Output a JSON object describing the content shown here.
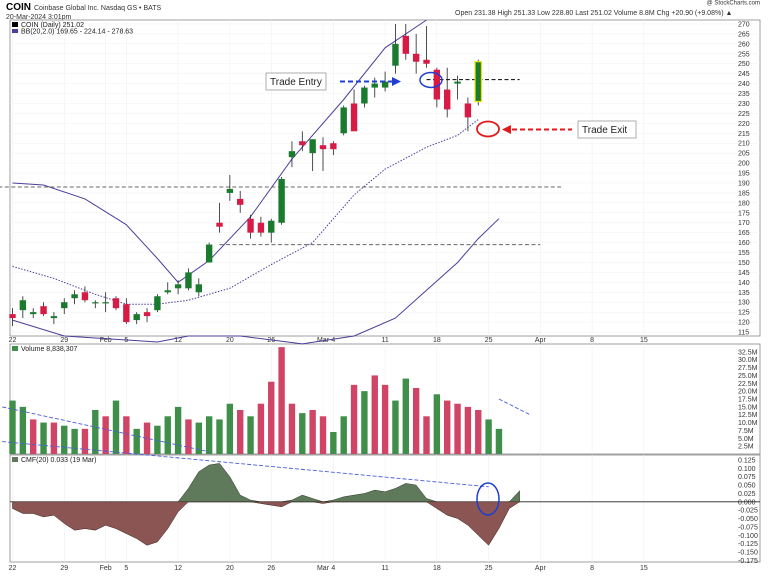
{
  "header": {
    "symbol": "COIN",
    "company": "Coinbase Global Inc.  Nasdaq GS • BATS",
    "date": "20-Mar-2024 3:01pm",
    "quote": "Open 231.38  High 251.33  Low 228.80  Last 251.02  Volume 8.8M  Chg +20.90 (+9.08%) ▲",
    "brand": "@ StockCharts.com"
  },
  "legends": {
    "price": "COIN (Daily) 251.02",
    "bb": "BB(20,2.0) 169.65 - 224.14 - 278.63",
    "volume": "Volume 8,838,307",
    "cmf": "CMF(20) 0.033 (19 Mar)"
  },
  "annotations": {
    "entry": "Trade Entry",
    "exit": "Trade Exit"
  },
  "colors": {
    "up": "#1a7a2e",
    "down": "#d81b45",
    "vol_up": "#3f8f4a",
    "vol_down": "#d04566",
    "band": "#4a3f9a",
    "cmf_pos": "#5e7a5a",
    "cmf_neg": "#8a5552",
    "ellipse_blue": "#1f3fd0",
    "ellipse_red": "#e01a1a"
  },
  "chart_data": [
    {
      "type": "candlestick",
      "ylim": [
        113,
        272
      ],
      "yticks": [
        115,
        120,
        125,
        130,
        135,
        140,
        145,
        150,
        155,
        160,
        165,
        170,
        175,
        180,
        185,
        190,
        195,
        200,
        205,
        210,
        215,
        220,
        225,
        230,
        235,
        240,
        245,
        250,
        255,
        260,
        265,
        270
      ],
      "xticks": [
        {
          "label": "22",
          "index": 0
        },
        {
          "label": "29",
          "index": 5
        },
        {
          "label": "Feb",
          "index": 9
        },
        {
          "label": "5",
          "index": 11
        },
        {
          "label": "12",
          "index": 16
        },
        {
          "label": "20",
          "index": 21
        },
        {
          "label": "26",
          "index": 25
        },
        {
          "label": "Mar",
          "index": 30
        },
        {
          "label": "4",
          "index": 31
        },
        {
          "label": "11",
          "index": 36
        },
        {
          "label": "18",
          "index": 41
        },
        {
          "label": "25",
          "index": 46
        },
        {
          "label": "Apr",
          "index": 51
        },
        {
          "label": "8",
          "index": 56
        },
        {
          "label": "15",
          "index": 61
        }
      ],
      "candles": [
        {
          "o": 124,
          "h": 127,
          "l": 118,
          "c": 122
        },
        {
          "o": 126,
          "h": 133,
          "l": 122,
          "c": 131
        },
        {
          "o": 124,
          "h": 127,
          "l": 122,
          "c": 125
        },
        {
          "o": 128,
          "h": 130,
          "l": 123,
          "c": 124
        },
        {
          "o": 122,
          "h": 125,
          "l": 119,
          "c": 123
        },
        {
          "o": 127,
          "h": 132,
          "l": 124,
          "c": 130
        },
        {
          "o": 132,
          "h": 136,
          "l": 129,
          "c": 134
        },
        {
          "o": 135,
          "h": 138,
          "l": 130,
          "c": 131
        },
        {
          "o": 130,
          "h": 131,
          "l": 127,
          "c": 130
        },
        {
          "o": 130,
          "h": 135,
          "l": 125,
          "c": 130
        },
        {
          "o": 132,
          "h": 133,
          "l": 126,
          "c": 127
        },
        {
          "o": 129,
          "h": 132,
          "l": 119,
          "c": 120
        },
        {
          "o": 121,
          "h": 125,
          "l": 119,
          "c": 124
        },
        {
          "o": 125,
          "h": 127,
          "l": 120,
          "c": 123
        },
        {
          "o": 126,
          "h": 134,
          "l": 125,
          "c": 133
        },
        {
          "o": 135,
          "h": 140,
          "l": 134,
          "c": 136
        },
        {
          "o": 137,
          "h": 141,
          "l": 134,
          "c": 139
        },
        {
          "o": 137,
          "h": 147,
          "l": 136,
          "c": 145
        },
        {
          "o": 135,
          "h": 142,
          "l": 133,
          "c": 139
        },
        {
          "o": 150,
          "h": 160,
          "l": 150,
          "c": 159
        },
        {
          "o": 170,
          "h": 180,
          "l": 165,
          "c": 168
        },
        {
          "o": 185,
          "h": 194,
          "l": 181,
          "c": 187
        },
        {
          "o": 182,
          "h": 186,
          "l": 175,
          "c": 179
        },
        {
          "o": 172,
          "h": 174,
          "l": 162,
          "c": 165
        },
        {
          "o": 170,
          "h": 173,
          "l": 163,
          "c": 165
        },
        {
          "o": 165,
          "h": 172,
          "l": 160,
          "c": 171
        },
        {
          "o": 170,
          "h": 193,
          "l": 169,
          "c": 192
        },
        {
          "o": 203,
          "h": 211,
          "l": 198,
          "c": 206
        },
        {
          "o": 211,
          "h": 216,
          "l": 206,
          "c": 209
        },
        {
          "o": 205,
          "h": 212,
          "l": 196,
          "c": 212
        },
        {
          "o": 209,
          "h": 213,
          "l": 196,
          "c": 207
        },
        {
          "o": 210,
          "h": 211,
          "l": 204,
          "c": 207
        },
        {
          "o": 215,
          "h": 229,
          "l": 214,
          "c": 228
        },
        {
          "o": 230,
          "h": 237,
          "l": 217,
          "c": 216
        },
        {
          "o": 230,
          "h": 239,
          "l": 228,
          "c": 238
        },
        {
          "o": 238,
          "h": 243,
          "l": 233,
          "c": 240
        },
        {
          "o": 238,
          "h": 246,
          "l": 236,
          "c": 241
        },
        {
          "o": 249,
          "h": 270,
          "l": 245,
          "c": 260
        },
        {
          "o": 264,
          "h": 270,
          "l": 252,
          "c": 255
        },
        {
          "o": 255,
          "h": 265,
          "l": 245,
          "c": 251
        },
        {
          "o": 252,
          "h": 269,
          "l": 248,
          "c": 250
        },
        {
          "o": 247,
          "h": 248,
          "l": 228,
          "c": 232
        },
        {
          "o": 237,
          "h": 248,
          "l": 223,
          "c": 227
        },
        {
          "o": 240,
          "h": 244,
          "l": 232,
          "c": 241
        },
        {
          "o": 230,
          "h": 233,
          "l": 216,
          "c": 223
        },
        {
          "o": 231,
          "h": 252,
          "l": 229,
          "c": 251
        }
      ],
      "bb_upper": [
        {
          "i": 0,
          "v": 190
        },
        {
          "i": 3,
          "v": 189
        },
        {
          "i": 7,
          "v": 182
        },
        {
          "i": 11,
          "v": 169
        },
        {
          "i": 14,
          "v": 152
        },
        {
          "i": 16,
          "v": 140
        },
        {
          "i": 19,
          "v": 151
        },
        {
          "i": 23,
          "v": 173
        },
        {
          "i": 27,
          "v": 202
        },
        {
          "i": 32,
          "v": 232
        },
        {
          "i": 36,
          "v": 258
        },
        {
          "i": 40,
          "v": 272
        }
      ],
      "bb_middle": [
        {
          "i": 0,
          "v": 148
        },
        {
          "i": 4,
          "v": 142
        },
        {
          "i": 8,
          "v": 134
        },
        {
          "i": 11,
          "v": 129
        },
        {
          "i": 14,
          "v": 129
        },
        {
          "i": 17,
          "v": 131
        },
        {
          "i": 21,
          "v": 137
        },
        {
          "i": 25,
          "v": 149
        },
        {
          "i": 29,
          "v": 160
        },
        {
          "i": 33,
          "v": 184
        },
        {
          "i": 36,
          "v": 197
        },
        {
          "i": 40,
          "v": 208
        },
        {
          "i": 43,
          "v": 214
        },
        {
          "i": 45,
          "v": 222
        }
      ],
      "bb_lower": [
        {
          "i": 0,
          "v": 121
        },
        {
          "i": 5,
          "v": 113
        },
        {
          "i": 11,
          "v": 111
        },
        {
          "i": 14,
          "v": 110
        },
        {
          "i": 17,
          "v": 113
        },
        {
          "i": 22,
          "v": 113
        },
        {
          "i": 28,
          "v": 109
        },
        {
          "i": 33,
          "v": 113
        },
        {
          "i": 37,
          "v": 122
        },
        {
          "i": 40,
          "v": 136
        },
        {
          "i": 43,
          "v": 150
        },
        {
          "i": 45,
          "v": 162
        },
        {
          "i": 47,
          "v": 172
        }
      ],
      "hlines": [
        {
          "v": 242,
          "i0": 40,
          "i1": 49,
          "style": "dashed",
          "color": "#000000"
        },
        {
          "v": 188,
          "i0": -2,
          "i1": 53,
          "style": "dashed",
          "color": "#666666"
        },
        {
          "v": 159,
          "i0": 20,
          "i1": 51,
          "style": "dashed",
          "color": "#666666"
        }
      ]
    },
    {
      "type": "bar",
      "name": "Volume",
      "ylim": [
        0,
        35
      ],
      "yticks_labels": [
        "2.5M",
        "5.0M",
        "7.5M",
        "10.0M",
        "12.5M",
        "15.0M",
        "17.5M",
        "20.0M",
        "22.5M",
        "25.0M",
        "27.5M",
        "30.0M",
        "32.5M"
      ],
      "yticks_values": [
        2.5,
        5,
        7.5,
        10,
        12.5,
        15,
        17.5,
        20,
        22.5,
        25,
        27.5,
        30,
        32.5
      ],
      "values": [
        17,
        15,
        11,
        10,
        10,
        9,
        8,
        8,
        14,
        12,
        17,
        12,
        8,
        10,
        9,
        12,
        15,
        11,
        10,
        12,
        11,
        16,
        14,
        12,
        16,
        23,
        34,
        16,
        13,
        14,
        12,
        7,
        12,
        22,
        20,
        25,
        22,
        17,
        24,
        21,
        12,
        19,
        17,
        16,
        15,
        14,
        11,
        8
      ],
      "up": [
        1,
        1,
        0,
        1,
        0,
        1,
        1,
        0,
        1,
        0,
        1,
        0,
        1,
        0,
        1,
        1,
        1,
        0,
        1,
        1,
        1,
        1,
        0,
        1,
        0,
        0,
        0,
        0,
        1,
        0,
        0,
        1,
        1,
        0,
        1,
        0,
        0,
        1,
        1,
        0,
        0,
        1,
        0,
        0,
        0,
        0,
        1,
        1
      ]
    },
    {
      "type": "area",
      "name": "CMF(20)",
      "ylim": [
        -0.18,
        0.14
      ],
      "yticks": [
        0.125,
        0.1,
        0.075,
        0.05,
        0.025,
        0.0,
        -0.025,
        -0.05,
        -0.075,
        -0.1,
        -0.125,
        -0.15,
        -0.175
      ],
      "yticks_labels": [
        "0.125",
        "0.100",
        "0.075",
        "0.050",
        "0.025",
        "0.000",
        "-0.025",
        "-0.050",
        "-0.075",
        "-0.100",
        "-0.125",
        "-0.150",
        "-0.175"
      ],
      "values": [
        -0.02,
        -0.035,
        -0.035,
        -0.045,
        -0.04,
        -0.065,
        -0.085,
        -0.08,
        -0.085,
        -0.07,
        -0.08,
        -0.095,
        -0.11,
        -0.13,
        -0.12,
        -0.08,
        -0.03,
        0.04,
        0.09,
        0.11,
        0.115,
        0.075,
        0.02,
        0.005,
        -0.005,
        -0.01,
        -0.015,
        0.005,
        0.02,
        0.01,
        -0.005,
        0.005,
        0.015,
        0.02,
        0.025,
        0.035,
        0.03,
        0.04,
        0.055,
        0.05,
        0.01,
        -0.02,
        -0.04,
        -0.05,
        -0.07,
        -0.1,
        -0.13,
        -0.08,
        -0.02,
        0.033
      ],
      "trend_top": [
        {
          "i": -1,
          "v": 0.18
        },
        {
          "i": 27,
          "v": 0.1
        },
        {
          "i": 46,
          "v": 0.045
        }
      ],
      "trend_vol": [
        {
          "i": -1,
          "v": 15.0
        },
        {
          "i": 19,
          "v": 0.7
        }
      ],
      "trend_vol2": [
        {
          "i": 47,
          "v": 17.5
        },
        {
          "i": 50,
          "v": 12.5
        }
      ]
    }
  ]
}
